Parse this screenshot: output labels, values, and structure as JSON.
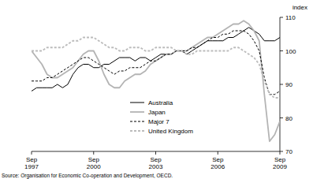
{
  "chart_data": {
    "type": "line",
    "y_label": "index",
    "source": "Source: Organisation for Economic Co-operation and Development, OECD.",
    "categories": [
      "Sep 1997",
      null,
      null,
      null,
      null,
      null,
      null,
      null,
      null,
      null,
      null,
      null,
      "Sep 2000",
      null,
      null,
      null,
      null,
      null,
      null,
      null,
      null,
      null,
      null,
      null,
      "Sep 2003",
      null,
      null,
      null,
      null,
      null,
      null,
      null,
      null,
      null,
      null,
      null,
      "Sep 2006",
      null,
      null,
      null,
      null,
      null,
      null,
      null,
      null,
      null,
      null,
      null,
      "Sep 2009"
    ],
    "series": [
      {
        "name": "Australia",
        "color": "#000000",
        "line_style": "solid",
        "values": [
          88,
          89,
          89,
          89,
          89,
          90,
          89,
          90,
          93,
          95,
          96,
          96,
          95,
          95,
          96,
          96,
          97,
          98,
          98,
          98,
          97,
          98,
          98,
          97,
          98,
          99,
          99,
          99,
          100,
          100,
          99,
          100,
          101,
          102,
          103,
          103,
          103,
          103,
          104,
          104,
          105,
          106,
          107,
          106,
          105,
          103,
          103,
          103,
          104
        ]
      },
      {
        "name": "Japan",
        "color": "#b4b4b4",
        "line_style": "solid",
        "values": [
          100,
          98,
          96,
          93,
          92,
          92,
          93,
          94,
          95,
          97,
          99,
          100,
          100,
          97,
          93,
          90,
          89,
          89,
          91,
          92,
          93,
          93,
          94,
          96,
          97,
          98,
          99,
          99,
          100,
          100,
          100,
          101,
          102,
          103,
          104,
          104,
          105,
          106,
          107,
          108,
          108,
          109,
          108,
          106,
          103,
          87,
          73,
          75,
          79
        ]
      },
      {
        "name": "Major 7",
        "color": "#000000",
        "line_style": "dashed",
        "values": [
          91,
          91,
          91,
          92,
          92,
          93,
          94,
          95,
          96,
          97,
          98,
          98,
          97,
          96,
          95,
          94,
          93,
          94,
          94,
          95,
          95,
          95,
          96,
          97,
          97,
          98,
          99,
          99,
          100,
          100,
          100,
          101,
          101,
          102,
          103,
          104,
          104,
          105,
          105,
          106,
          106,
          106,
          105,
          103,
          100,
          92,
          87,
          87,
          88
        ]
      },
      {
        "name": "United Kingdom",
        "color": "#bcbcbc",
        "line_style": "dashed",
        "values": [
          100,
          100,
          100,
          101,
          101,
          101,
          101,
          102,
          103,
          103,
          104,
          104,
          104,
          103,
          102,
          101,
          101,
          100,
          100,
          101,
          101,
          101,
          100,
          100,
          101,
          101,
          101,
          101,
          100,
          100,
          99,
          99,
          100,
          100,
          100,
          100,
          100,
          100,
          100,
          101,
          101,
          100,
          99,
          98,
          96,
          91,
          87,
          86,
          86
        ]
      }
    ],
    "ylim": [
      70,
      110
    ],
    "yticks": [
      70,
      80,
      90,
      100,
      110
    ],
    "legend": "center"
  }
}
